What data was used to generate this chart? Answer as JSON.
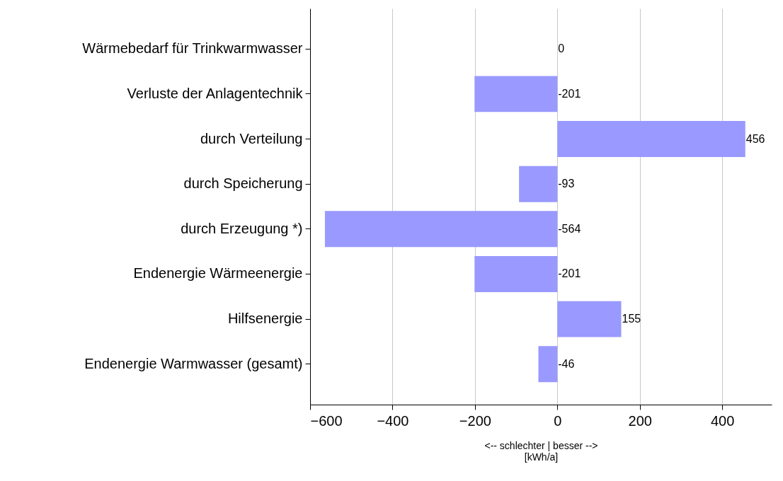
{
  "chart_data": {
    "type": "bar",
    "orientation": "horizontal",
    "xlabel": "<-- schlechter | besser -->\n[kWh/a]",
    "categories": [
      "Wärmebedarf für Trinkwarmwasser",
      "Verluste der Anlagentechnik",
      "durch Verteilung",
      "durch Speicherung",
      "durch Erzeugung *)",
      "Endenergie Wärmeenergie",
      "Hilfsenergie",
      "Endenergie Warmwasser (gesamt)"
    ],
    "values": [
      0,
      -201,
      456,
      -93,
      -564,
      -201,
      155,
      -46
    ],
    "color": "#9999ff",
    "xlim": [
      -600,
      520
    ],
    "xticks": [
      -600,
      -400,
      -200,
      0,
      200,
      400
    ],
    "grid": "x",
    "data_labels": true
  }
}
